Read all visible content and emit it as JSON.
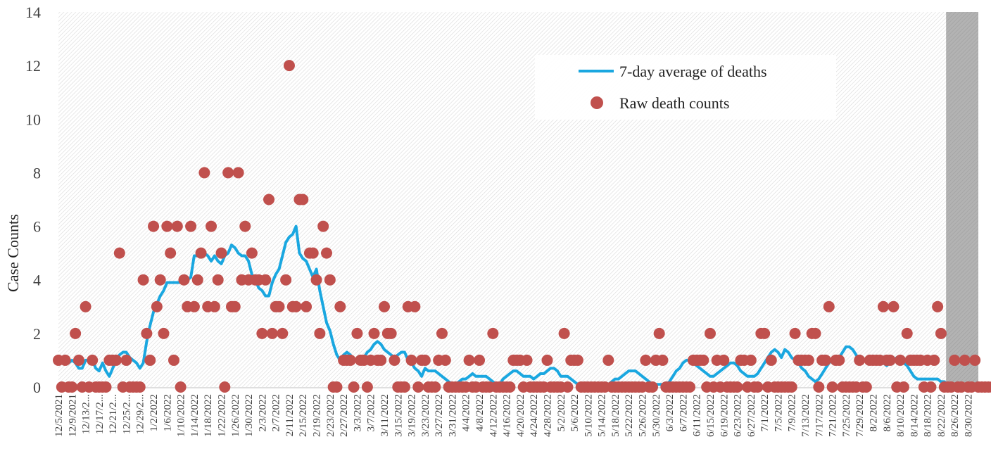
{
  "chart_data": {
    "type": "line",
    "ylabel": "Case Counts",
    "ylim": [
      0,
      14
    ],
    "y_ticks": [
      "0",
      "2",
      "4",
      "6",
      "8",
      "10",
      "12",
      "14"
    ],
    "x_tick_labels": [
      "12/5/2021",
      "12/9/2021",
      "12/13/2...",
      "12/17/2...",
      "12/21/2...",
      "12/25/2...",
      "12/29/2...",
      "1/2/2022",
      "1/6/2022",
      "1/10/2022",
      "1/14/2022",
      "1/18/2022",
      "1/22/2022",
      "1/26/2022",
      "1/30/2022",
      "2/3/2022",
      "2/7/2022",
      "2/11/2022",
      "2/15/2022",
      "2/19/2022",
      "2/23/2022",
      "2/27/2022",
      "3/3/2022",
      "3/7/2022",
      "3/11/2022",
      "3/15/2022",
      "3/19/2022",
      "3/23/2022",
      "3/27/2022",
      "3/31/2022",
      "4/4/2022",
      "4/8/2022",
      "4/12/2022",
      "4/16/2022",
      "4/20/2022",
      "4/24/2022",
      "4/28/2022",
      "5/2/2022",
      "5/6/2022",
      "5/10/2022",
      "5/14/2022",
      "5/18/2022",
      "5/22/2022",
      "5/26/2022",
      "5/30/2022",
      "6/3/2022",
      "6/7/2022",
      "6/11/2022",
      "6/15/2022",
      "6/19/2022",
      "6/23/2022",
      "6/27/2022",
      "7/1/2022",
      "7/5/2022",
      "7/9/2022",
      "7/13/2022",
      "7/17/2022",
      "7/21/2022",
      "7/25/2022",
      "7/29/2022",
      "8/2/2022",
      "8/6/2022",
      "8/10/2022",
      "8/14/2022",
      "8/18/2022",
      "8/22/2022",
      "8/26/2022",
      "8/30/2022"
    ],
    "x_start": "12/5/2021",
    "shaded_from": "8/24/2022",
    "grid": false,
    "legend_position": "top-right",
    "series": [
      {
        "name": "7-day average of deaths",
        "kind": "line",
        "color": "#1aa7e0",
        "values": [
          1,
          1,
          1,
          0.9,
          1,
          0.9,
          0.7,
          0.7,
          1,
          1,
          1,
          0.7,
          0.6,
          0.9,
          0.6,
          0.4,
          0.7,
          1,
          1.2,
          1.3,
          1.3,
          1.1,
          1,
          0.9,
          0.7,
          0.9,
          1.7,
          2.3,
          2.8,
          3.1,
          3.4,
          3.6,
          3.9,
          3.9,
          3.9,
          3.9,
          3.9,
          3.9,
          4,
          4.1,
          4.9,
          4.9,
          5,
          5,
          4.9,
          4.7,
          4.9,
          4.7,
          4.6,
          4.9,
          5,
          5.3,
          5.2,
          5,
          4.9,
          4.9,
          4.7,
          4.2,
          4,
          3.7,
          3.6,
          3.4,
          3.4,
          3.9,
          4.2,
          4.4,
          4.9,
          5.4,
          5.6,
          5.7,
          6,
          5,
          4.8,
          4.7,
          4.4,
          4.1,
          4.4,
          3.6,
          3,
          2.4,
          2.1,
          1.6,
          1.2,
          1,
          1.2,
          1.3,
          1.2,
          1,
          1,
          1,
          1.1,
          1.3,
          1.4,
          1.6,
          1.7,
          1.6,
          1.4,
          1.3,
          1.2,
          1.1,
          1.2,
          1.3,
          1.3,
          1,
          0.9,
          0.7,
          0.6,
          0.4,
          0.7,
          0.6,
          0.6,
          0.6,
          0.5,
          0.4,
          0.3,
          0.2,
          0.1,
          0.1,
          0.2,
          0.3,
          0.3,
          0.4,
          0.5,
          0.4,
          0.4,
          0.4,
          0.4,
          0.3,
          0.2,
          0.1,
          0.1,
          0.3,
          0.4,
          0.5,
          0.6,
          0.6,
          0.5,
          0.4,
          0.4,
          0.4,
          0.3,
          0.4,
          0.5,
          0.5,
          0.6,
          0.7,
          0.7,
          0.6,
          0.4,
          0.4,
          0.4,
          0.3,
          0.2,
          0.1,
          0.1,
          0.1,
          0.1,
          0.1,
          0.1,
          0.1,
          0.1,
          0.1,
          0.1,
          0.2,
          0.3,
          0.3,
          0.4,
          0.5,
          0.6,
          0.6,
          0.6,
          0.5,
          0.4,
          0.3,
          0.2,
          0.1,
          0.1,
          0.1,
          0.1,
          0.1,
          0.2,
          0.4,
          0.6,
          0.7,
          0.9,
          1,
          1,
          0.9,
          0.8,
          0.7,
          0.6,
          0.5,
          0.4,
          0.4,
          0.5,
          0.6,
          0.7,
          0.8,
          0.9,
          0.9,
          0.8,
          0.6,
          0.5,
          0.4,
          0.4,
          0.4,
          0.5,
          0.7,
          0.9,
          1.1,
          1.3,
          1.4,
          1.3,
          1.1,
          1.4,
          1.3,
          1.1,
          1,
          0.9,
          0.7,
          0.6,
          0.4,
          0.3,
          0.2,
          0.3,
          0.5,
          0.7,
          0.9,
          1,
          1,
          1.1,
          1.3,
          1.5,
          1.5,
          1.4,
          1.2,
          1,
          1,
          1,
          1,
          1,
          1,
          1,
          0.9,
          0.8,
          0.9,
          1,
          1.1,
          1,
          0.9,
          0.8,
          0.6,
          0.4,
          0.3,
          0.3,
          0.3,
          0.3,
          0.3,
          0.3,
          0.3,
          0.2,
          0.2,
          0.1,
          0.1,
          0.1,
          0.1,
          0.1,
          0.1,
          0.1,
          0.1,
          0.1,
          0.1
        ]
      },
      {
        "name": "Raw death counts",
        "kind": "scatter",
        "color": "#c0504d",
        "values": [
          1,
          0,
          1,
          0,
          0,
          2,
          1,
          0,
          3,
          0,
          1,
          0,
          0,
          0,
          0,
          1,
          1,
          1,
          5,
          0,
          1,
          0,
          0,
          0,
          0,
          4,
          2,
          1,
          6,
          3,
          4,
          2,
          6,
          5,
          1,
          6,
          0,
          4,
          3,
          6,
          3,
          4,
          5,
          8,
          3,
          6,
          3,
          4,
          5,
          0,
          8,
          3,
          3,
          8,
          4,
          6,
          4,
          5,
          4,
          4,
          2,
          4,
          7,
          2,
          3,
          3,
          2,
          4,
          12,
          3,
          3,
          7,
          7,
          3,
          5,
          5,
          4,
          2,
          6,
          5,
          4,
          0,
          0,
          3,
          1,
          1,
          1,
          0,
          2,
          1,
          1,
          0,
          1,
          2,
          1,
          1,
          3,
          2,
          2,
          1,
          0,
          0,
          0,
          3,
          1,
          3,
          0,
          1,
          1,
          0,
          0,
          0,
          1,
          2,
          1,
          0,
          0,
          0,
          0,
          0,
          0,
          1,
          0,
          0,
          1,
          0,
          0,
          0,
          2,
          0,
          0,
          0,
          0,
          0,
          1,
          1,
          1,
          0,
          1,
          0,
          0,
          0,
          0,
          0,
          1,
          0,
          0,
          0,
          0,
          2,
          0,
          1,
          1,
          1,
          0,
          0,
          0,
          0,
          0,
          0,
          0,
          0,
          1,
          0,
          0,
          0,
          0,
          0,
          0,
          0,
          0,
          0,
          0,
          1,
          0,
          0,
          1,
          2,
          1,
          0,
          0,
          0,
          0,
          0,
          0,
          0,
          0,
          1,
          1,
          1,
          1,
          0,
          2,
          0,
          1,
          0,
          1,
          0,
          0,
          0,
          0,
          1,
          1,
          0,
          1,
          0,
          0,
          2,
          2,
          0,
          1,
          0,
          0,
          0,
          0,
          0,
          0,
          2,
          1,
          1,
          1,
          1,
          2,
          2,
          0,
          1,
          1,
          3,
          0,
          1,
          1,
          0,
          0,
          0,
          0,
          0,
          1,
          0,
          0,
          1,
          1,
          1,
          1,
          3,
          1,
          1,
          3,
          0,
          1,
          0,
          2,
          1,
          1,
          1,
          1,
          0,
          1,
          0,
          1,
          3,
          2,
          0,
          0,
          0,
          1,
          0,
          0,
          1,
          0,
          0,
          1,
          0,
          0,
          0,
          0,
          0,
          0,
          0,
          0,
          0,
          0
        ]
      }
    ]
  }
}
